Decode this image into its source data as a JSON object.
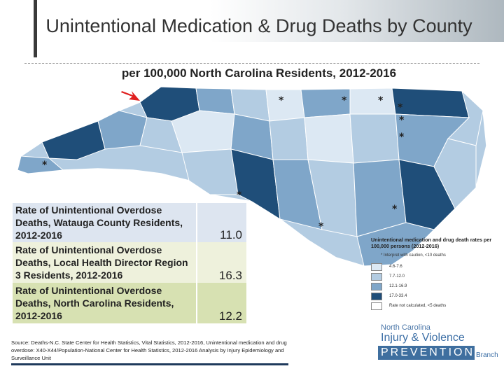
{
  "title": "Unintentional Medication & Drug Deaths by County",
  "subtitle": "per 100,000 North Carolina Residents, 2012-2016",
  "map": {
    "colors": {
      "light": "#dce8f3",
      "mid_light": "#b3cce2",
      "mid": "#7fa6c9",
      "dark": "#1f4e79",
      "border": "#ffffff"
    },
    "interpret_marker": "*"
  },
  "stats": [
    {
      "label": "Rate of Unintentional Overdose Deaths, Watauga County Residents, 2012-2016",
      "value": "11.0"
    },
    {
      "label": "Rate of Unintentional Overdose Deaths, Local Health Director Region 3 Residents, 2012-2016",
      "value": "16.3"
    },
    {
      "label": "Rate of Unintentional Overdose Deaths, North Carolina Residents, 2012-2016",
      "value": "12.2"
    }
  ],
  "legend": {
    "title": "Unintentional medication and drug death rates per 100,000 persons (2012-2016)",
    "note": "* Interpret with caution, <10 deaths",
    "items": [
      {
        "label": "4.6-7.6",
        "color": "#dce8f3"
      },
      {
        "label": "7.7-12.0",
        "color": "#b3cce2"
      },
      {
        "label": "12.1-16.9",
        "color": "#7fa6c9"
      },
      {
        "label": "17.0-33.4",
        "color": "#1f4e79"
      },
      {
        "label": "Rate not calculated, <5 deaths",
        "color": "#ffffff"
      }
    ]
  },
  "source": "Source: Deaths-N.C. State Center for Health Statistics, Vital Statistics, 2012-2016, Unintentional medication and drug overdose: X40-X44/Population-National Center for Health Statistics, 2012-2016 Analysis by Injury Epidemiology and Surveillance Unit",
  "logo": {
    "line1": "North Carolina",
    "line2": "Injury & Violence",
    "line3": "PREVENTION",
    "line4": "Branch"
  },
  "arrow_color": "#e02020"
}
